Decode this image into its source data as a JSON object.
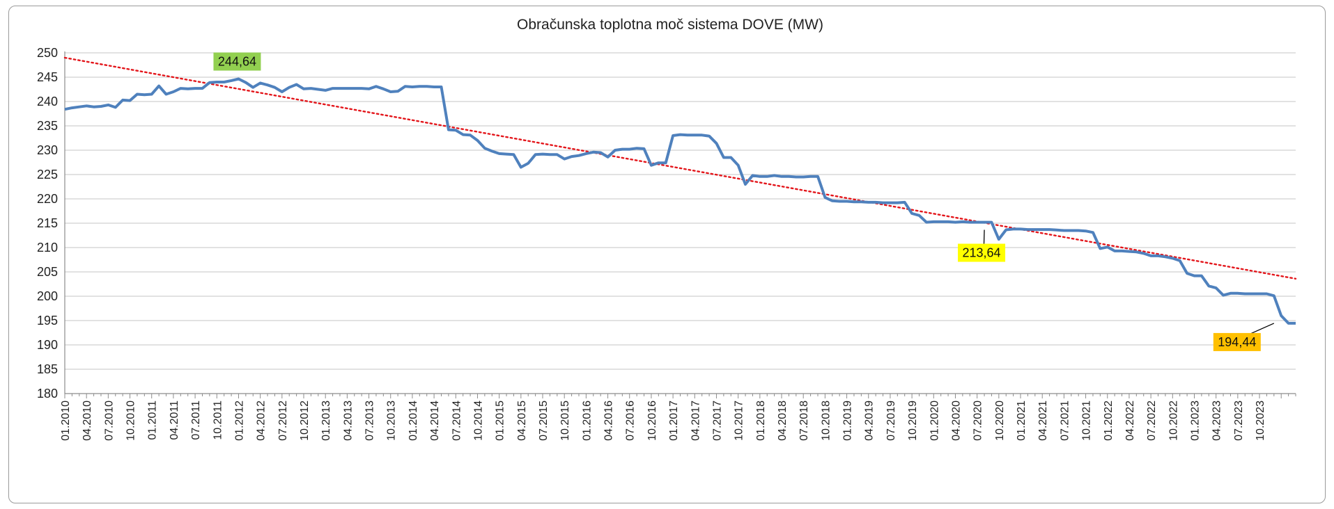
{
  "chart_data": {
    "type": "line",
    "title": "Obračunska toplotna moč sistema DOVE (MW)",
    "xlabel": "",
    "ylabel": "",
    "ylim": [
      180,
      250
    ],
    "yticks": [
      180,
      185,
      190,
      195,
      200,
      205,
      210,
      215,
      220,
      225,
      230,
      235,
      240,
      245,
      250
    ],
    "grid": true,
    "legend": "none",
    "x_tick_labels": [
      "01.2010",
      "04.2010",
      "07.2010",
      "10.2010",
      "01.2011",
      "04.2011",
      "07.2011",
      "10.2011",
      "01.2012",
      "04.2012",
      "07.2012",
      "10.2012",
      "01.2013",
      "04.2013",
      "07.2013",
      "10.2013",
      "01.2014",
      "04.2014",
      "07.2014",
      "10.2014",
      "01.2015",
      "04.2015",
      "07.2015",
      "10.2015",
      "01.2016",
      "04.2016",
      "07.2016",
      "10.2016",
      "01.2017",
      "04.2017",
      "07.2017",
      "10.2017",
      "01.2018",
      "04.2018",
      "07.2018",
      "10.2018",
      "01.2019",
      "04.2019",
      "07.2019",
      "10.2019",
      "01.2020",
      "04.2020",
      "07.2020",
      "10.2020",
      "01.2021",
      "04.2021",
      "07.2021",
      "10.2021",
      "01.2022",
      "04.2022",
      "07.2022",
      "10.2022",
      "01.2023",
      "04.2023",
      "07.2023",
      "10.2023"
    ],
    "series": [
      {
        "color": "#4f81bd",
        "values": [
          238.4,
          238.7,
          238.9,
          239.1,
          238.9,
          239.0,
          239.3,
          238.8,
          240.3,
          240.2,
          241.5,
          241.4,
          241.5,
          243.2,
          241.5,
          242.0,
          242.7,
          242.6,
          242.7,
          242.7,
          243.9,
          244.0,
          244.0,
          244.3,
          244.64,
          243.9,
          242.9,
          243.8,
          243.4,
          242.9,
          242.0,
          242.9,
          243.5,
          242.6,
          242.7,
          242.5,
          242.3,
          242.7,
          242.7,
          242.7,
          242.7,
          242.7,
          242.6,
          243.1,
          242.6,
          242.0,
          242.1,
          243.1,
          243.0,
          243.1,
          243.1,
          243.0,
          243.0,
          234.2,
          234.1,
          233.2,
          233.1,
          232.0,
          230.4,
          229.8,
          229.3,
          229.2,
          229.1,
          226.5,
          227.3,
          229.1,
          229.2,
          229.1,
          229.1,
          228.2,
          228.7,
          228.9,
          229.3,
          229.6,
          229.5,
          228.6,
          230.0,
          230.2,
          230.2,
          230.4,
          230.3,
          226.9,
          227.4,
          227.4,
          233.0,
          233.2,
          233.1,
          233.1,
          233.1,
          232.9,
          231.4,
          228.5,
          228.5,
          226.9,
          223.0,
          224.8,
          224.6,
          224.6,
          224.8,
          224.6,
          224.6,
          224.5,
          224.5,
          224.6,
          224.6,
          220.3,
          219.6,
          219.5,
          219.5,
          219.4,
          219.4,
          219.3,
          219.3,
          219.2,
          219.2,
          219.2,
          219.3,
          217.0,
          216.6,
          215.2,
          215.3,
          215.3,
          215.3,
          215.2,
          215.3,
          215.2,
          215.2,
          215.2,
          215.2,
          211.7,
          213.64,
          213.8,
          213.8,
          213.7,
          213.7,
          213.7,
          213.7,
          213.6,
          213.5,
          213.5,
          213.5,
          213.4,
          213.1,
          209.8,
          210.1,
          209.3,
          209.3,
          209.2,
          209.1,
          208.8,
          208.3,
          208.3,
          208.1,
          207.8,
          207.3,
          204.7,
          204.2,
          204.2,
          202.1,
          201.7,
          200.2,
          200.6,
          200.6,
          200.5,
          200.5,
          200.5,
          200.5,
          200.1,
          196.0,
          194.44,
          194.44
        ]
      },
      {
        "name": "trend",
        "color": "#e3151a",
        "values": [
          249.0,
          203.6
        ]
      }
    ],
    "annotations": [
      {
        "text": "244,64",
        "point_index": 24,
        "value": 244.64,
        "background": "#92d050"
      },
      {
        "text": "213,64",
        "point_index": 127,
        "value": 213.64,
        "background": "#ffff00"
      },
      {
        "text": "194,44",
        "point_index": 167,
        "value": 194.44,
        "background": "#ffc000"
      }
    ]
  }
}
